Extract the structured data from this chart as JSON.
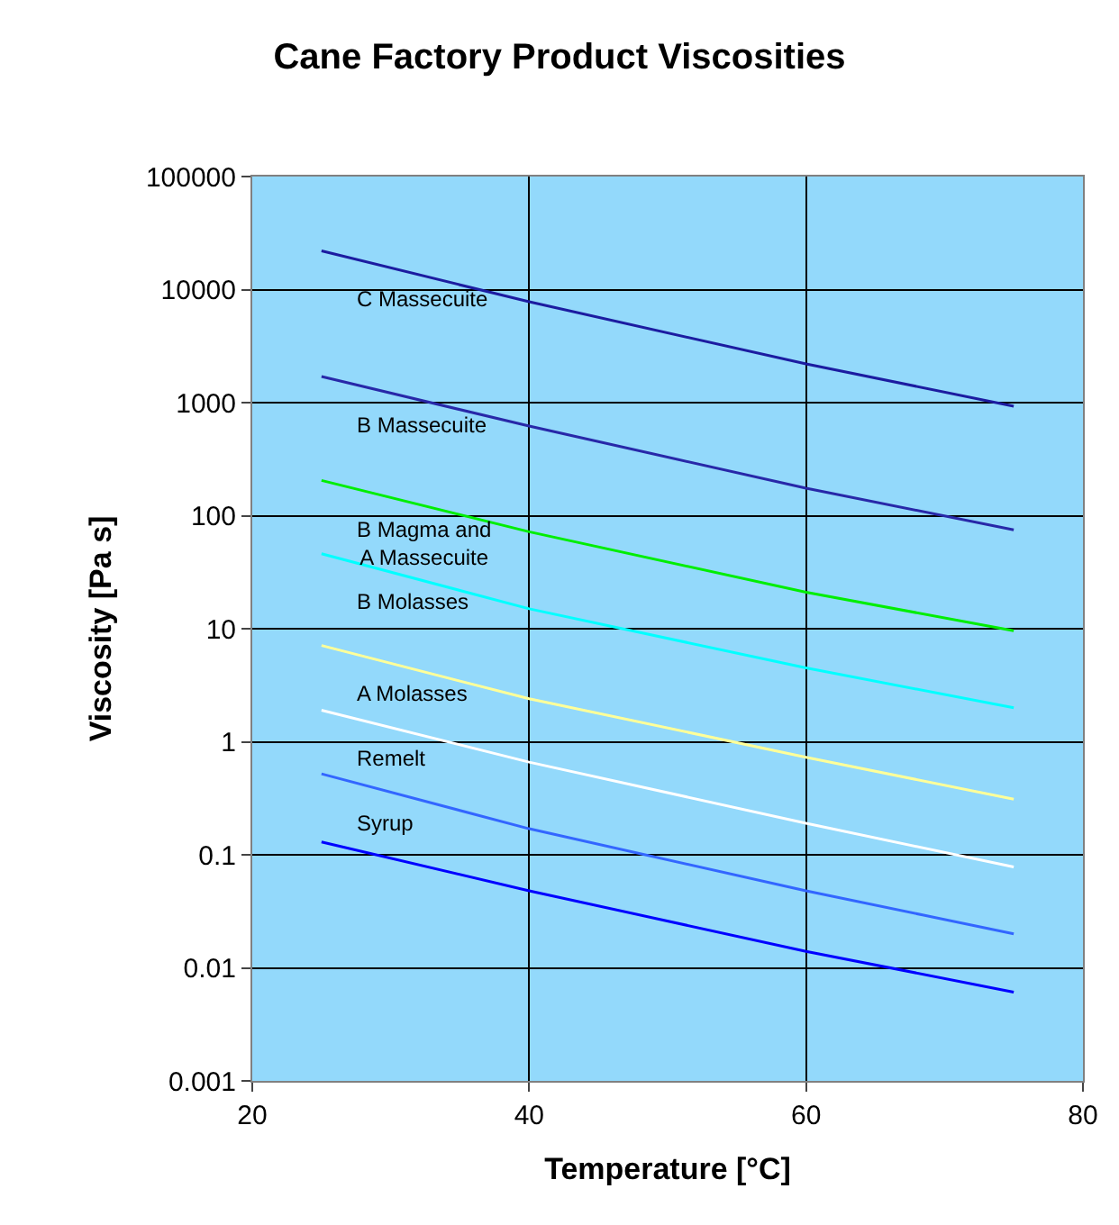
{
  "chart_data": {
    "type": "line",
    "title": "Cane Factory Product Viscosities",
    "xlabel": "Temperature [°C]",
    "ylabel": "Viscosity [Pa s]",
    "x": [
      25,
      40,
      60,
      75
    ],
    "series": [
      {
        "name": "C Massecuite",
        "color": "#1c1ca0",
        "values": [
          22000,
          7800,
          2200,
          930
        ]
      },
      {
        "name": "B Massecuite",
        "color": "#2828a8",
        "values": [
          1700,
          620,
          175,
          75
        ]
      },
      {
        "name": "B Magma and\nA Massecuite",
        "color": "#00ee00",
        "values": [
          205,
          72,
          21,
          9.6
        ]
      },
      {
        "name": "B Molasses",
        "color": "#00ffff",
        "values": [
          46,
          15,
          4.5,
          2.0
        ]
      },
      {
        "name": "A Molasses",
        "color": "#ffff99",
        "values": [
          7.1,
          2.4,
          0.73,
          0.31
        ]
      },
      {
        "name": "Remelt",
        "color": "#ffffff",
        "values": [
          1.9,
          0.66,
          0.19,
          0.078
        ]
      },
      {
        "name": "Syrup",
        "color": "#3366ff",
        "values": [
          0.52,
          0.17,
          0.048,
          0.02
        ]
      },
      {
        "color": "#0000ff",
        "values": [
          0.13,
          0.048,
          0.014,
          0.0061
        ]
      }
    ],
    "xlim": [
      20,
      80
    ],
    "xticks": [
      20,
      40,
      60,
      80
    ],
    "ylim": [
      0.001,
      100000
    ],
    "yticks": [
      0.001,
      0.01,
      0.1,
      1,
      10,
      100,
      1000,
      10000,
      100000
    ],
    "log": true,
    "grid": true,
    "legend": false,
    "marker": "none",
    "line_style": "solid"
  }
}
